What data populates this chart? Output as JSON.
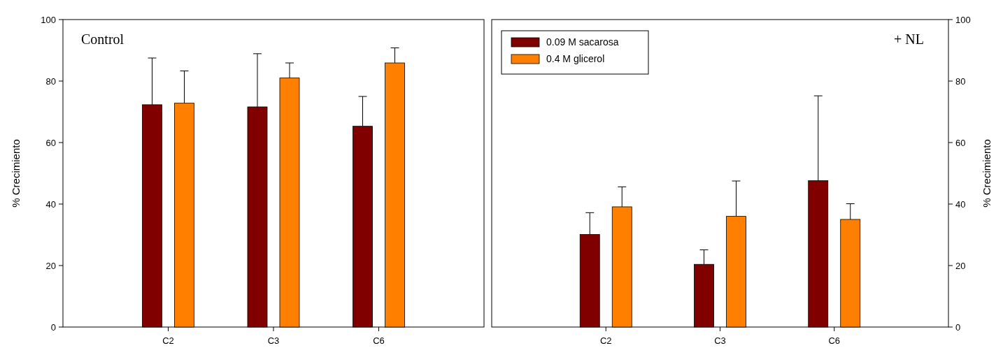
{
  "chart_data": [
    {
      "type": "bar",
      "title": "Control",
      "categories": [
        "C2",
        "C3",
        "C6"
      ],
      "ylabel": "% Crecimiento",
      "ylim": [
        0,
        100
      ],
      "yticks": [
        0,
        20,
        40,
        60,
        80,
        100
      ],
      "grid": false,
      "legend": false,
      "series": [
        {
          "color": "#800000",
          "values": [
            72.3,
            71.6,
            65.3
          ],
          "errors": [
            [
              72.3,
              87.5
            ],
            [
              71.6,
              88.9
            ],
            [
              65.3,
              75
            ]
          ]
        },
        {
          "color": "#ff8000",
          "values": [
            72.8,
            81,
            85.9
          ],
          "errors": [
            [
              72.8,
              83.3
            ],
            [
              81,
              85.9
            ],
            [
              85.9,
              90.8
            ]
          ]
        }
      ]
    },
    {
      "type": "bar",
      "title": "+ NL",
      "categories": [
        "C2",
        "C3",
        "C6"
      ],
      "y2label": "% Crecimiento",
      "y2lim": [
        0,
        100
      ],
      "y2ticks": [
        0,
        20,
        40,
        60,
        80,
        100
      ],
      "grid": false,
      "legend": "top left",
      "series": [
        {
          "name": "0.09 M sacarosa",
          "axis": "y2",
          "color": "#800000",
          "values": [
            30.1,
            20.4,
            47.6
          ],
          "errors": [
            [
              30.1,
              37.2
            ],
            [
              20.4,
              25.1
            ],
            [
              47.6,
              75.2
            ]
          ]
        },
        {
          "name": "0.4 M glicerol",
          "axis": "y2",
          "color": "#ff8000",
          "values": [
            39.1,
            36,
            35
          ],
          "errors": [
            [
              39.1,
              45.6
            ],
            [
              36,
              47.5
            ],
            [
              35,
              40.1
            ]
          ]
        }
      ]
    }
  ]
}
